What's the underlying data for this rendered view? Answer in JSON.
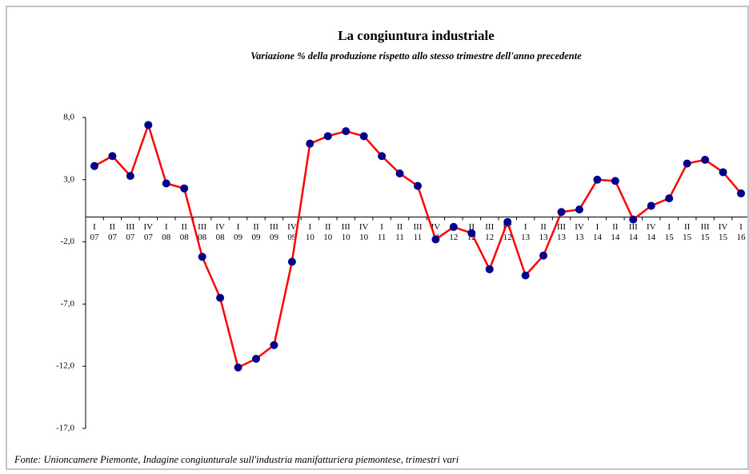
{
  "chart_data": {
    "type": "line",
    "title": "La congiuntura industriale",
    "subtitle": "Variazione % della produzione rispetto allo stesso trimestre dell'anno precedente",
    "source": "Fonte: Unioncamere Piemonte, Indagine congiunturale sull'industria manifatturiera piemontese, trimestri vari",
    "categories": [
      [
        "I",
        "07"
      ],
      [
        "II",
        "07"
      ],
      [
        "III",
        "07"
      ],
      [
        "IV",
        "07"
      ],
      [
        "I",
        "08"
      ],
      [
        "II",
        "08"
      ],
      [
        "III",
        "08"
      ],
      [
        "IV",
        "08"
      ],
      [
        "I",
        "09"
      ],
      [
        "II",
        "09"
      ],
      [
        "III",
        "09"
      ],
      [
        "IV",
        "09"
      ],
      [
        "I",
        "10"
      ],
      [
        "II",
        "10"
      ],
      [
        "III",
        "10"
      ],
      [
        "IV",
        "10"
      ],
      [
        "I",
        "11"
      ],
      [
        "II",
        "11"
      ],
      [
        "III",
        "11"
      ],
      [
        "IV",
        "11"
      ],
      [
        "I",
        "12"
      ],
      [
        "II",
        "12"
      ],
      [
        "III",
        "12"
      ],
      [
        "IV",
        "12"
      ],
      [
        "I",
        "13"
      ],
      [
        "II",
        "13"
      ],
      [
        "III",
        "13"
      ],
      [
        "IV",
        "13"
      ],
      [
        "I",
        "14"
      ],
      [
        "II",
        "14"
      ],
      [
        "III",
        "14"
      ],
      [
        "IV",
        "14"
      ],
      [
        "I",
        "15"
      ],
      [
        "II",
        "15"
      ],
      [
        "III",
        "15"
      ],
      [
        "IV",
        "15"
      ],
      [
        "I",
        "16"
      ]
    ],
    "series": [
      {
        "color": "#ff0000",
        "marker_color": "#00008b",
        "values": [
          4.1,
          4.9,
          3.3,
          7.4,
          2.7,
          2.3,
          -3.2,
          -6.5,
          -12.1,
          -11.4,
          -10.3,
          -3.6,
          5.9,
          6.5,
          6.9,
          6.5,
          4.9,
          3.5,
          2.5,
          -1.8,
          -0.8,
          -1.3,
          -4.2,
          -0.4,
          -4.7,
          -3.1,
          0.4,
          0.6,
          3.0,
          2.9,
          -0.2,
          0.9,
          1.5,
          4.3,
          4.6,
          3.6,
          1.9
        ]
      }
    ],
    "ylim": [
      -17,
      8
    ],
    "yticks": [
      {
        "value": 8,
        "label": "8,0"
      },
      {
        "value": 3,
        "label": "3,0"
      },
      {
        "value": -2,
        "label": "-2,0"
      },
      {
        "value": -7,
        "label": "-7,0"
      },
      {
        "value": -12,
        "label": "-12,0"
      },
      {
        "value": -17,
        "label": "-17,0"
      }
    ]
  }
}
